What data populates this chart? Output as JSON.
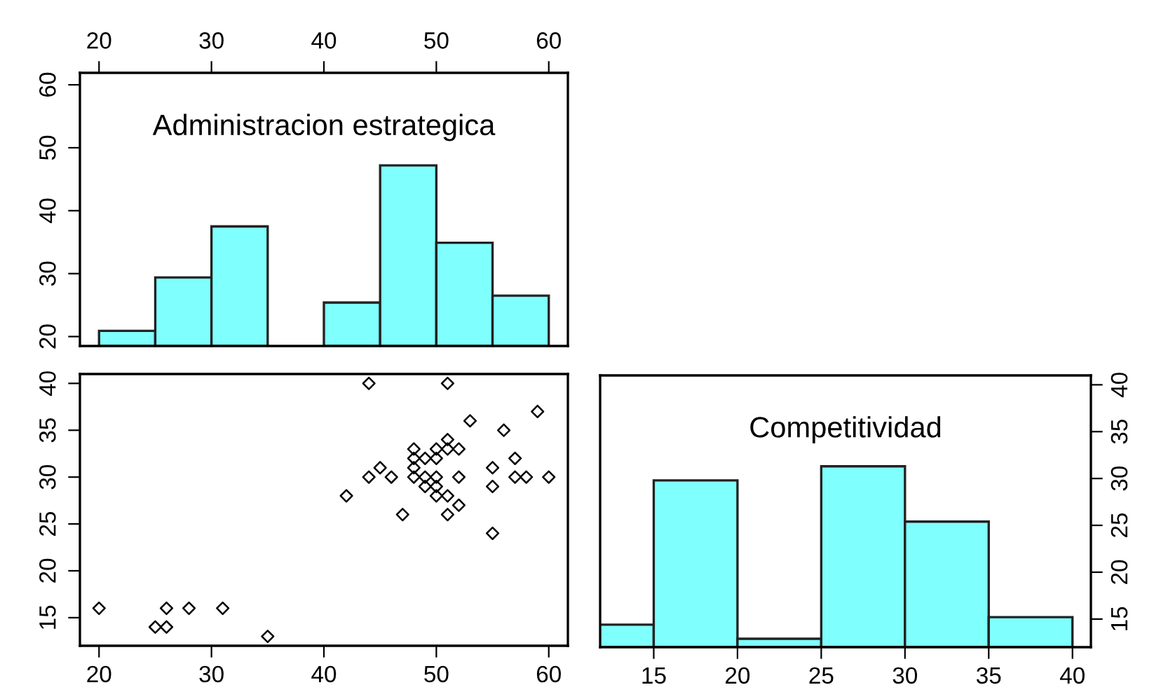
{
  "chart_data": [
    {
      "type": "histogram",
      "title": "Administracion estrategica",
      "bins": [
        20,
        25,
        30,
        35,
        40,
        45,
        50,
        55,
        60
      ],
      "values": [
        20.9,
        29.4,
        37.5,
        null,
        25.4,
        47.2,
        34.9,
        26.5
      ],
      "color": "#80ffff",
      "xlim": [
        18.3,
        61.7
      ],
      "xticks": [
        20,
        30,
        40,
        50,
        60
      ],
      "ylim": [
        18.5,
        61.9
      ],
      "yticks": [
        20,
        30,
        40,
        50,
        60
      ],
      "grid": false
    },
    {
      "type": "scatter",
      "x": [
        20,
        25,
        26,
        26,
        28,
        31,
        35,
        42,
        44,
        44,
        45,
        46,
        47,
        48,
        48,
        48,
        48,
        49,
        49,
        49,
        50,
        50,
        50,
        50,
        50,
        51,
        51,
        51,
        51,
        51,
        52,
        52,
        52,
        53,
        55,
        55,
        55,
        56,
        57,
        57,
        58,
        59,
        60
      ],
      "values": [
        16,
        14,
        14,
        16,
        16,
        16,
        13,
        28,
        40,
        30,
        31,
        30,
        26,
        33,
        32,
        31,
        30,
        32,
        30,
        29,
        33,
        32,
        30,
        29,
        28,
        40,
        34,
        33,
        28,
        26,
        33,
        30,
        27,
        36,
        31,
        29,
        24,
        35,
        32,
        30,
        30,
        37,
        30
      ],
      "color": "#000000",
      "marker": "diamond",
      "xlim": [
        18.3,
        61.7
      ],
      "xticks": [
        20,
        30,
        40,
        50,
        60
      ],
      "ylim": [
        12,
        41
      ],
      "yticks": [
        15,
        20,
        25,
        30,
        35,
        40
      ],
      "grid": false
    },
    {
      "type": "histogram",
      "title": "Competitividad",
      "bins": [
        10,
        15,
        20,
        25,
        30,
        35,
        40
      ],
      "series": [
        {
          "axis": "y2",
          "values": [
            14.4,
            29.8,
            12.9,
            31.3,
            25.4,
            15.2
          ],
          "color": "#80ffff"
        }
      ],
      "xlim": [
        11.8,
        41.1
      ],
      "xticks": [
        15,
        20,
        25,
        30,
        35,
        40
      ],
      "y2lim": [
        12,
        41
      ],
      "y2ticks": [
        15,
        20,
        25,
        30,
        35,
        40
      ],
      "grid": false
    }
  ]
}
